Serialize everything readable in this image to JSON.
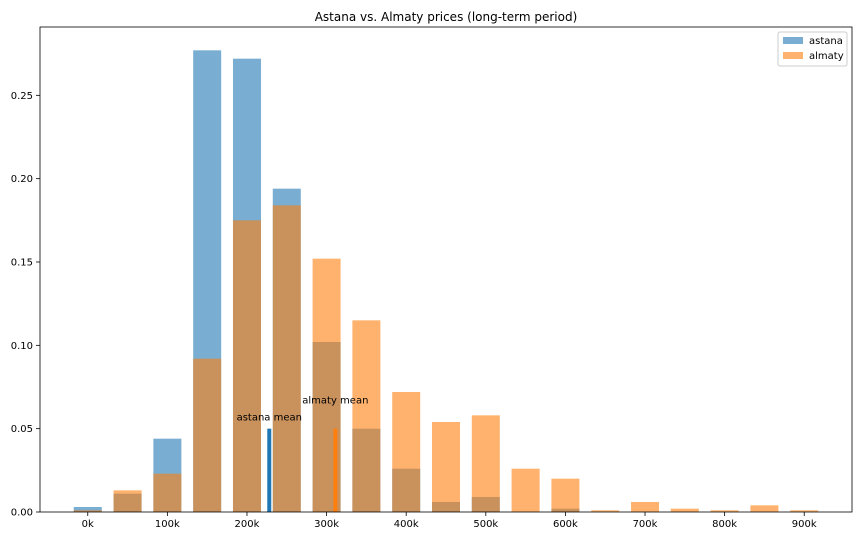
{
  "chart_data": {
    "type": "bar",
    "title": "Astana vs. Almaty prices (long-term period)",
    "xlabel": "",
    "ylabel": "",
    "x": [
      0,
      50000,
      100000,
      150000,
      200000,
      250000,
      300000,
      350000,
      400000,
      450000,
      500000,
      550000,
      600000,
      650000,
      700000,
      750000,
      800000,
      850000,
      900000
    ],
    "xticks": [
      0,
      100000,
      200000,
      300000,
      400000,
      500000,
      600000,
      700000,
      800000,
      900000
    ],
    "xtick_labels": [
      "0k",
      "100k",
      "200k",
      "300k",
      "400k",
      "500k",
      "600k",
      "700k",
      "800k",
      "900k"
    ],
    "xlim": [
      -60000,
      960000
    ],
    "yticks": [
      0.0,
      0.05,
      0.1,
      0.15,
      0.2,
      0.25
    ],
    "ytick_labels": [
      "0.00",
      "0.05",
      "0.10",
      "0.15",
      "0.20",
      "0.25"
    ],
    "ylim": [
      0,
      0.291
    ],
    "grid": false,
    "legend_position": "top-right",
    "series": [
      {
        "name": "astana",
        "color": "#1f77b4",
        "opacity": 0.6,
        "values": [
          0.003,
          0.011,
          0.044,
          0.277,
          0.272,
          0.194,
          0.102,
          0.05,
          0.026,
          0.006,
          0.009,
          0.0,
          0.002,
          0.0,
          0.0,
          0.0,
          0.0,
          0.0,
          0.0
        ]
      },
      {
        "name": "almaty",
        "color": "#ff7f0e",
        "opacity": 0.6,
        "values": [
          0.001,
          0.013,
          0.023,
          0.092,
          0.175,
          0.184,
          0.152,
          0.115,
          0.072,
          0.054,
          0.058,
          0.026,
          0.02,
          0.001,
          0.006,
          0.002,
          0.001,
          0.004,
          0.001
        ]
      }
    ],
    "mean_markers": [
      {
        "label": "astana mean",
        "x": 228000,
        "height": 0.05,
        "color": "#1f77b4",
        "label_y": 0.055
      },
      {
        "label": "almaty mean",
        "x": 311000,
        "height": 0.05,
        "color": "#ff7f0e",
        "label_y": 0.065
      }
    ]
  }
}
